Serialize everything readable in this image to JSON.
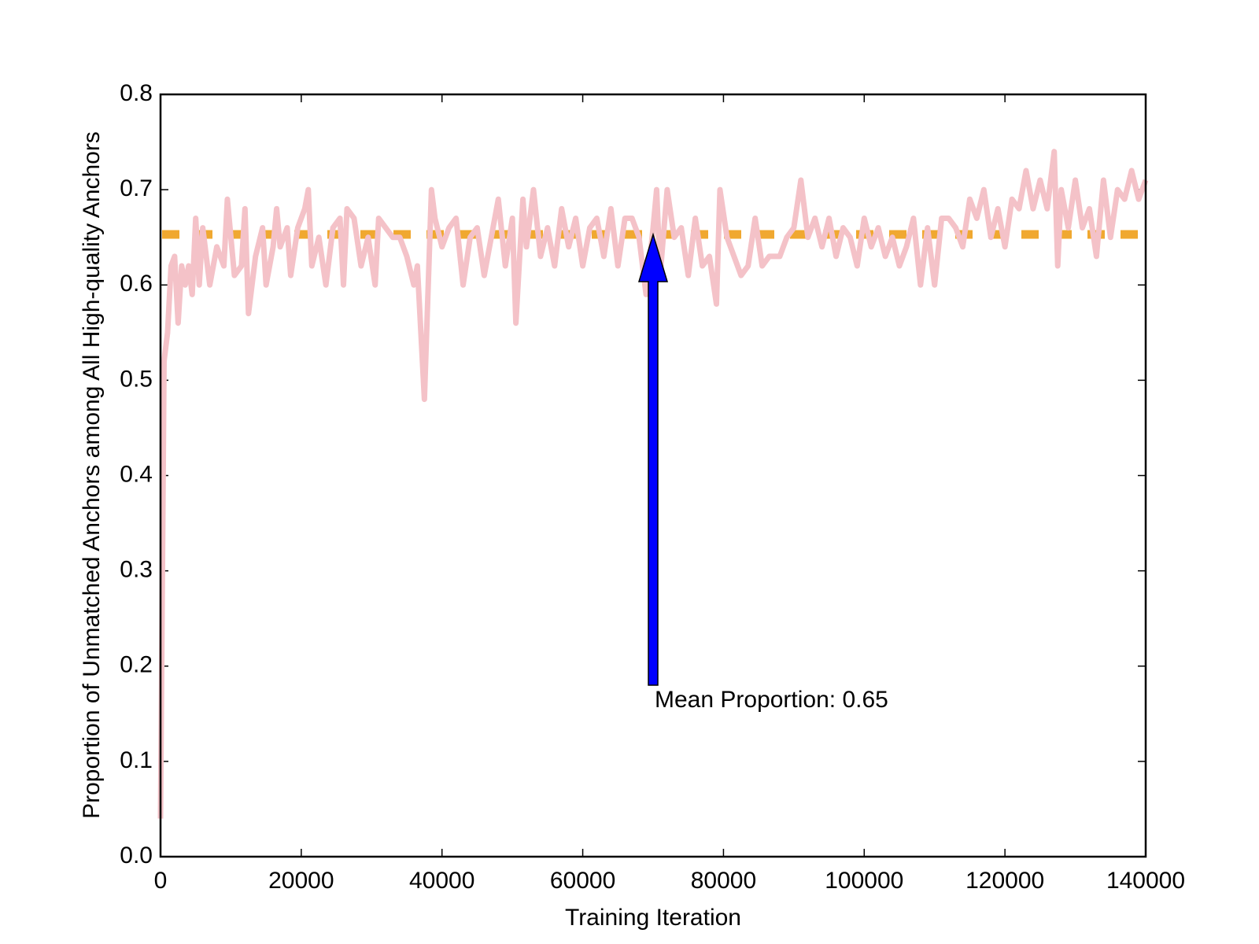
{
  "chart_data": {
    "type": "line",
    "x_label": "Training Iteration",
    "y_label": "Proportion of Unmatched Anchors among All High-quality Anchors",
    "xlim": [
      0,
      140000
    ],
    "ylim": [
      0,
      0.8
    ],
    "xticks": [
      0,
      20000,
      40000,
      60000,
      80000,
      100000,
      120000,
      140000
    ],
    "yticks": [
      {
        "value": 0,
        "label": "0.0"
      },
      0.1,
      0.2,
      0.3,
      0.4,
      0.5,
      0.6,
      0.7,
      0.8
    ],
    "series": [
      {
        "color": "#f4c2c8",
        "x": [
          0,
          500,
          1000,
          1500,
          2000,
          2500,
          3000,
          3500,
          4000,
          4500,
          5000,
          5500,
          6000,
          7000,
          8000,
          9000,
          9500,
          10500,
          11500,
          12000,
          12500,
          13500,
          14500,
          15000,
          16000,
          16500,
          17000,
          18000,
          18500,
          19500,
          20500,
          21000,
          21500,
          22500,
          23500,
          24500,
          25500,
          26000,
          26500,
          27500,
          28500,
          29500,
          30500,
          31000,
          32000,
          33000,
          34000,
          35000,
          36000,
          36500,
          37500,
          38500,
          39000,
          40000,
          41000,
          42000,
          43000,
          44000,
          45000,
          46000,
          47000,
          48000,
          49000,
          50000,
          50500,
          51500,
          52000,
          53000,
          54000,
          55000,
          56000,
          57000,
          58000,
          59000,
          60000,
          61000,
          62000,
          63000,
          64000,
          65000,
          66000,
          67000,
          68000,
          69000,
          70000,
          70500,
          71000,
          72000,
          73000,
          74000,
          75000,
          76000,
          77000,
          78000,
          79000,
          79500,
          80500,
          81500,
          82500,
          83500,
          84500,
          85500,
          86500,
          88000,
          89000,
          90000,
          91000,
          92000,
          93000,
          94000,
          95000,
          96000,
          97000,
          98000,
          99000,
          100000,
          101000,
          102000,
          103000,
          104000,
          105000,
          106000,
          107000,
          108000,
          109000,
          110000,
          111000,
          112000,
          113000,
          114000,
          115000,
          116000,
          117000,
          118000,
          119000,
          120000,
          121000,
          122000,
          123000,
          124000,
          125000,
          126000,
          127000,
          127500,
          128000,
          129000,
          130000,
          131000,
          132000,
          133000,
          134000,
          135000,
          136000,
          137000,
          138000,
          139000,
          140000
        ],
        "values": [
          0.04,
          0.52,
          0.55,
          0.62,
          0.63,
          0.56,
          0.62,
          0.6,
          0.62,
          0.59,
          0.67,
          0.6,
          0.66,
          0.6,
          0.64,
          0.62,
          0.69,
          0.61,
          0.62,
          0.68,
          0.57,
          0.63,
          0.66,
          0.6,
          0.64,
          0.68,
          0.64,
          0.66,
          0.61,
          0.66,
          0.68,
          0.7,
          0.62,
          0.65,
          0.6,
          0.66,
          0.67,
          0.6,
          0.68,
          0.67,
          0.62,
          0.65,
          0.6,
          0.67,
          0.66,
          0.65,
          0.65,
          0.63,
          0.6,
          0.62,
          0.48,
          0.7,
          0.67,
          0.64,
          0.66,
          0.67,
          0.6,
          0.65,
          0.66,
          0.61,
          0.65,
          0.69,
          0.62,
          0.67,
          0.56,
          0.69,
          0.64,
          0.7,
          0.63,
          0.66,
          0.62,
          0.68,
          0.64,
          0.67,
          0.62,
          0.66,
          0.67,
          0.63,
          0.68,
          0.62,
          0.67,
          0.67,
          0.65,
          0.59,
          0.66,
          0.7,
          0.61,
          0.7,
          0.65,
          0.66,
          0.61,
          0.67,
          0.62,
          0.63,
          0.58,
          0.7,
          0.65,
          0.63,
          0.61,
          0.62,
          0.67,
          0.62,
          0.63,
          0.63,
          0.65,
          0.66,
          0.71,
          0.65,
          0.67,
          0.64,
          0.67,
          0.63,
          0.66,
          0.65,
          0.62,
          0.67,
          0.64,
          0.66,
          0.63,
          0.65,
          0.62,
          0.64,
          0.67,
          0.6,
          0.66,
          0.6,
          0.67,
          0.67,
          0.66,
          0.64,
          0.69,
          0.67,
          0.7,
          0.65,
          0.68,
          0.64,
          0.69,
          0.68,
          0.72,
          0.68,
          0.71,
          0.68,
          0.74,
          0.62,
          0.7,
          0.66,
          0.71,
          0.66,
          0.68,
          0.63,
          0.71,
          0.65,
          0.7,
          0.69,
          0.72,
          0.69,
          0.71
        ]
      }
    ],
    "mean_line": {
      "value": 0.653,
      "color": "#f0a830"
    },
    "annotation": {
      "text": "Mean Proportion: 0.65",
      "x": 70000,
      "y": 0.18,
      "arrow_color": "#0000ff"
    }
  }
}
